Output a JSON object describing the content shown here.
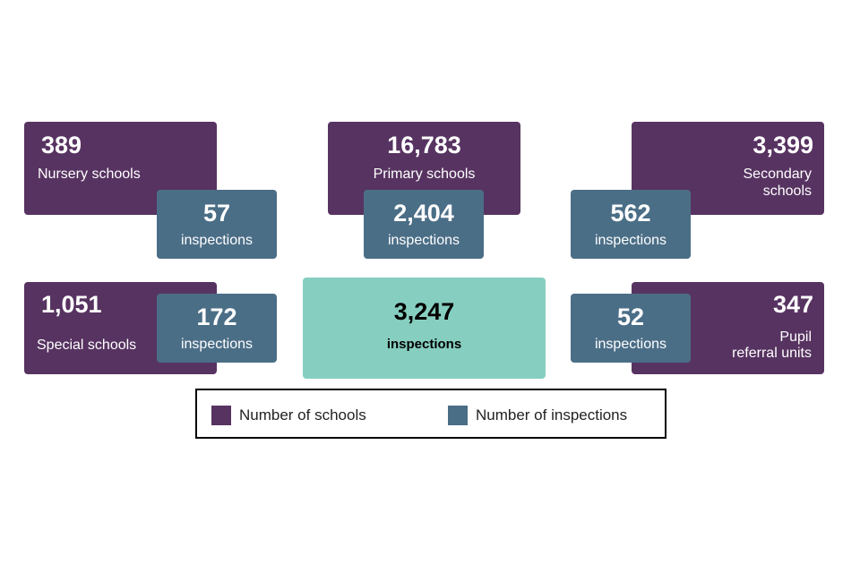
{
  "colors": {
    "school": "#573361",
    "inspection": "#4b6e87",
    "total": "#86cfc0"
  },
  "nursery": {
    "count": "389",
    "label": "Nursery schools",
    "inspections": "57",
    "inspections_label": "inspections"
  },
  "primary": {
    "count": "16,783",
    "label": "Primary schools",
    "inspections": "2,404",
    "inspections_label": "inspections"
  },
  "secondary": {
    "count": "3,399",
    "label_line1": "Secondary",
    "label_line2": "schools",
    "inspections": "562",
    "inspections_label": "inspections"
  },
  "special": {
    "count": "1,051",
    "label": "Special schools",
    "inspections": "172",
    "inspections_label": "inspections"
  },
  "total": {
    "count": "3,247",
    "label": "inspections"
  },
  "pru": {
    "count": "347",
    "label_line1": "Pupil",
    "label_line2": "referral units",
    "inspections": "52",
    "inspections_label": "inspections"
  },
  "legend": {
    "schools": "Number of schools",
    "inspections": "Number of inspections"
  }
}
